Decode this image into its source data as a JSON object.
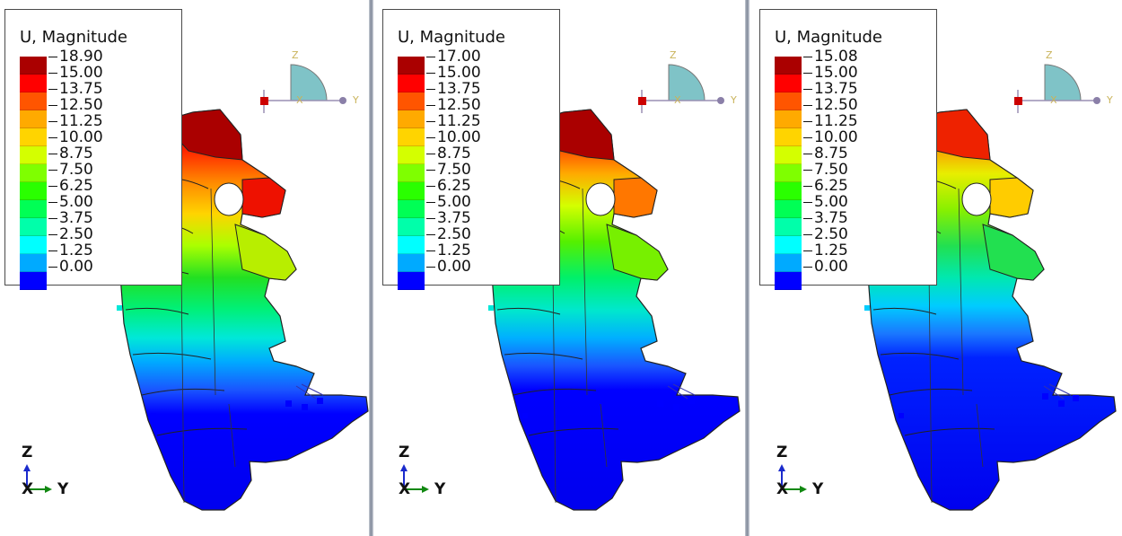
{
  "panels": [
    {
      "legend_title": "U, Magnitude",
      "legend_values": [
        "18.90",
        "15.00",
        "13.75",
        "12.50",
        "11.25",
        "10.00",
        "8.75",
        "7.50",
        "6.25",
        "5.00",
        "3.75",
        "2.50",
        "1.25",
        "0.00"
      ],
      "max_value": 18.9
    },
    {
      "legend_title": "U, Magnitude",
      "legend_values": [
        "17.00",
        "15.00",
        "13.75",
        "12.50",
        "11.25",
        "10.00",
        "8.75",
        "7.50",
        "6.25",
        "5.00",
        "3.75",
        "2.50",
        "1.25",
        "0.00"
      ],
      "max_value": 17.0
    },
    {
      "legend_title": "U, Magnitude",
      "legend_values": [
        "15.08",
        "15.00",
        "13.75",
        "12.50",
        "11.25",
        "10.00",
        "8.75",
        "7.50",
        "6.25",
        "5.00",
        "3.75",
        "2.50",
        "1.25",
        "0.00"
      ],
      "max_value": 15.08
    }
  ],
  "contour_colors": [
    "#aa0000",
    "#ff0000",
    "#ff5500",
    "#ffaa00",
    "#ffd400",
    "#d4ff00",
    "#7fff00",
    "#2aff00",
    "#00ff55",
    "#00ffaa",
    "#00ffff",
    "#00aaff",
    "#0055ff",
    "#0000ff"
  ],
  "triad_small": {
    "z": "Z",
    "x": "X",
    "y": "Y"
  },
  "csys": {
    "z": "Z",
    "x": "X",
    "y": "Y"
  }
}
